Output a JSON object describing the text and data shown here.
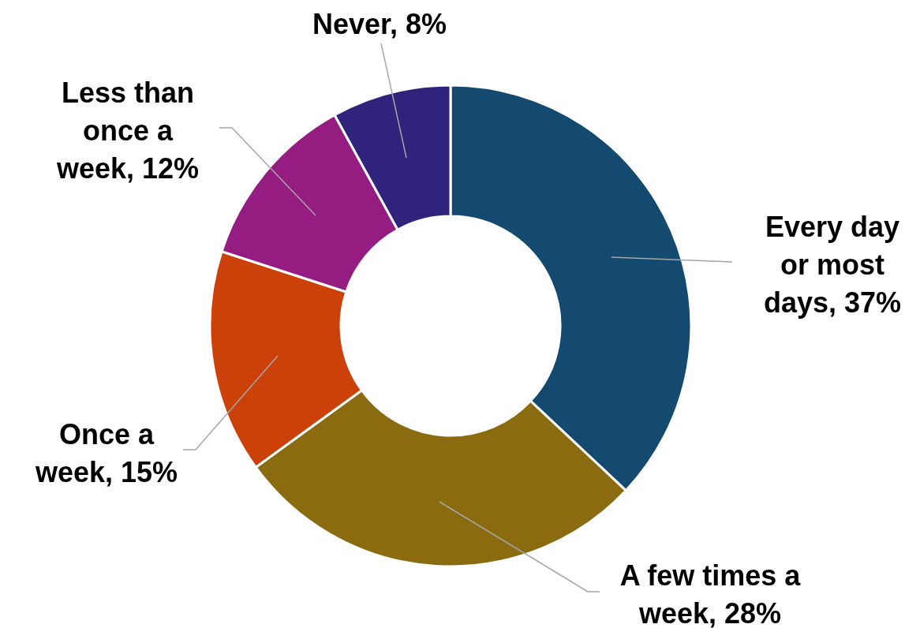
{
  "chart_data": {
    "type": "donut",
    "categories": [
      "Every day or most days",
      "A few times a week",
      "Once a week",
      "Less than once a week",
      "Never"
    ],
    "values": [
      37,
      28,
      15,
      12,
      8
    ],
    "value_labels": [
      "37%",
      "28%",
      "15%",
      "12%",
      "8%"
    ],
    "colors": [
      "#154a70",
      "#8a6b10",
      "#cc410a",
      "#951c80",
      "#30237c"
    ]
  }
}
